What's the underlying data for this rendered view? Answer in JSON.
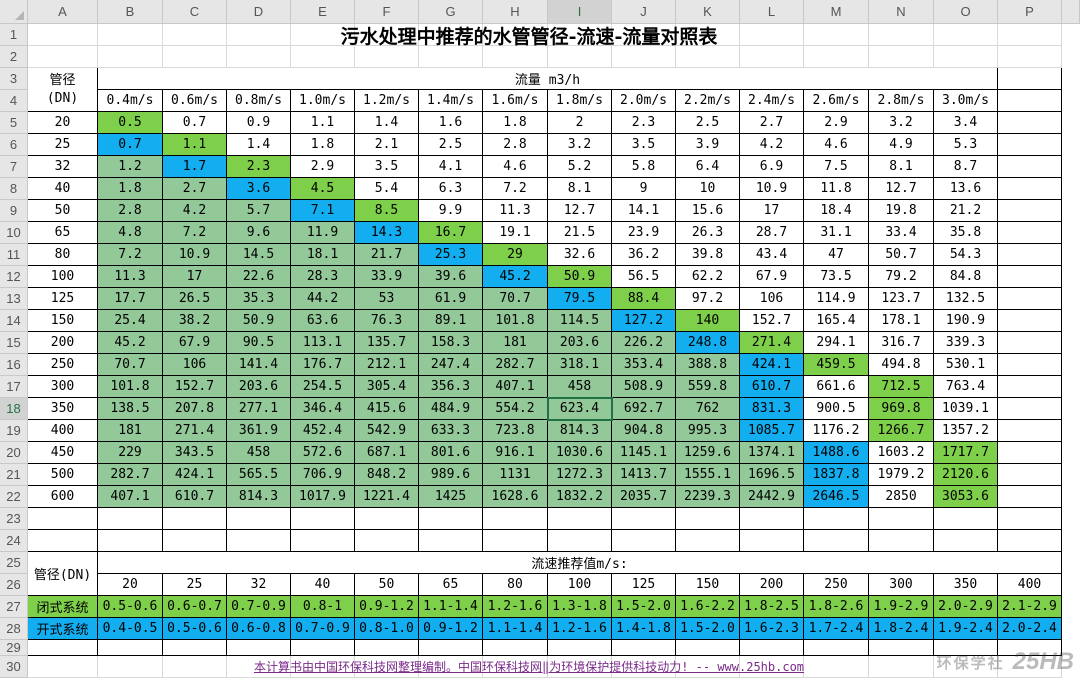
{
  "columns": [
    "A",
    "B",
    "C",
    "D",
    "E",
    "F",
    "G",
    "H",
    "I",
    "J",
    "K",
    "L",
    "M",
    "N",
    "O",
    "P"
  ],
  "rows": [
    "1",
    "2",
    "3",
    "4",
    "5",
    "6",
    "7",
    "8",
    "9",
    "10",
    "11",
    "12",
    "13",
    "14",
    "15",
    "16",
    "17",
    "18",
    "19",
    "20",
    "21",
    "22",
    "23",
    "24",
    "25",
    "26",
    "27",
    "28",
    "29",
    "30"
  ],
  "selected_column": "I",
  "selected_row": "18",
  "title": "污水处理中推荐的水管管径-流速-流量对照表",
  "table1": {
    "dn_header": [
      "管径",
      "(DN)"
    ],
    "flow_header": "流量 m3/h",
    "speeds": [
      "0.4m/s",
      "0.6m/s",
      "0.8m/s",
      "1.0m/s",
      "1.2m/s",
      "1.4m/s",
      "1.6m/s",
      "1.8m/s",
      "2.0m/s",
      "2.2m/s",
      "2.4m/s",
      "2.6m/s",
      "2.8m/s",
      "3.0m/s"
    ],
    "dn": [
      "20",
      "25",
      "32",
      "40",
      "50",
      "65",
      "80",
      "100",
      "125",
      "150",
      "200",
      "250",
      "300",
      "350",
      "400",
      "450",
      "500",
      "600"
    ],
    "values": [
      [
        "0.5",
        "0.7",
        "0.9",
        "1.1",
        "1.4",
        "1.6",
        "1.8",
        "2",
        "2.3",
        "2.5",
        "2.7",
        "2.9",
        "3.2",
        "3.4"
      ],
      [
        "0.7",
        "1.1",
        "1.4",
        "1.8",
        "2.1",
        "2.5",
        "2.8",
        "3.2",
        "3.5",
        "3.9",
        "4.2",
        "4.6",
        "4.9",
        "5.3"
      ],
      [
        "1.2",
        "1.7",
        "2.3",
        "2.9",
        "3.5",
        "4.1",
        "4.6",
        "5.2",
        "5.8",
        "6.4",
        "6.9",
        "7.5",
        "8.1",
        "8.7"
      ],
      [
        "1.8",
        "2.7",
        "3.6",
        "4.5",
        "5.4",
        "6.3",
        "7.2",
        "8.1",
        "9",
        "10",
        "10.9",
        "11.8",
        "12.7",
        "13.6"
      ],
      [
        "2.8",
        "4.2",
        "5.7",
        "7.1",
        "8.5",
        "9.9",
        "11.3",
        "12.7",
        "14.1",
        "15.6",
        "17",
        "18.4",
        "19.8",
        "21.2"
      ],
      [
        "4.8",
        "7.2",
        "9.6",
        "11.9",
        "14.3",
        "16.7",
        "19.1",
        "21.5",
        "23.9",
        "26.3",
        "28.7",
        "31.1",
        "33.4",
        "35.8"
      ],
      [
        "7.2",
        "10.9",
        "14.5",
        "18.1",
        "21.7",
        "25.3",
        "29",
        "32.6",
        "36.2",
        "39.8",
        "43.4",
        "47",
        "50.7",
        "54.3"
      ],
      [
        "11.3",
        "17",
        "22.6",
        "28.3",
        "33.9",
        "39.6",
        "45.2",
        "50.9",
        "56.5",
        "62.2",
        "67.9",
        "73.5",
        "79.2",
        "84.8"
      ],
      [
        "17.7",
        "26.5",
        "35.3",
        "44.2",
        "53",
        "61.9",
        "70.7",
        "79.5",
        "88.4",
        "97.2",
        "106",
        "114.9",
        "123.7",
        "132.5"
      ],
      [
        "25.4",
        "38.2",
        "50.9",
        "63.6",
        "76.3",
        "89.1",
        "101.8",
        "114.5",
        "127.2",
        "140",
        "152.7",
        "165.4",
        "178.1",
        "190.9"
      ],
      [
        "45.2",
        "67.9",
        "90.5",
        "113.1",
        "135.7",
        "158.3",
        "181",
        "203.6",
        "226.2",
        "248.8",
        "271.4",
        "294.1",
        "316.7",
        "339.3"
      ],
      [
        "70.7",
        "106",
        "141.4",
        "176.7",
        "212.1",
        "247.4",
        "282.7",
        "318.1",
        "353.4",
        "388.8",
        "424.1",
        "459.5",
        "494.8",
        "530.1"
      ],
      [
        "101.8",
        "152.7",
        "203.6",
        "254.5",
        "305.4",
        "356.3",
        "407.1",
        "458",
        "508.9",
        "559.8",
        "610.7",
        "661.6",
        "712.5",
        "763.4"
      ],
      [
        "138.5",
        "207.8",
        "277.1",
        "346.4",
        "415.6",
        "484.9",
        "554.2",
        "623.4",
        "692.7",
        "762",
        "831.3",
        "900.5",
        "969.8",
        "1039.1"
      ],
      [
        "181",
        "271.4",
        "361.9",
        "452.4",
        "542.9",
        "633.3",
        "723.8",
        "814.3",
        "904.8",
        "995.3",
        "1085.7",
        "1176.2",
        "1266.7",
        "1357.2"
      ],
      [
        "229",
        "343.5",
        "458",
        "572.6",
        "687.1",
        "801.6",
        "916.1",
        "1030.6",
        "1145.1",
        "1259.6",
        "1374.1",
        "1488.6",
        "1603.2",
        "1717.7"
      ],
      [
        "282.7",
        "424.1",
        "565.5",
        "706.9",
        "848.2",
        "989.6",
        "1131",
        "1272.3",
        "1413.7",
        "1555.1",
        "1696.5",
        "1837.8",
        "1979.2",
        "2120.6"
      ],
      [
        "407.1",
        "610.7",
        "814.3",
        "1017.9",
        "1221.4",
        "1425",
        "1628.6",
        "1832.2",
        "2035.7",
        "2239.3",
        "2442.9",
        "2646.5",
        "2850",
        "3053.6"
      ]
    ],
    "fill": [
      [
        "g2",
        "",
        "",
        "",
        "",
        "",
        "",
        "",
        "",
        "",
        "",
        "",
        "",
        ""
      ],
      [
        "bl",
        "g2",
        "",
        "",
        "",
        "",
        "",
        "",
        "",
        "",
        "",
        "",
        "",
        ""
      ],
      [
        "g1",
        "bl",
        "g2",
        "",
        "",
        "",
        "",
        "",
        "",
        "",
        "",
        "",
        "",
        ""
      ],
      [
        "g1",
        "g1",
        "bl",
        "g2",
        "",
        "",
        "",
        "",
        "",
        "",
        "",
        "",
        "",
        ""
      ],
      [
        "g1",
        "g1",
        "g1",
        "bl",
        "g2",
        "",
        "",
        "",
        "",
        "",
        "",
        "",
        "",
        ""
      ],
      [
        "g1",
        "g1",
        "g1",
        "g1",
        "bl",
        "g2",
        "",
        "",
        "",
        "",
        "",
        "",
        "",
        ""
      ],
      [
        "g1",
        "g1",
        "g1",
        "g1",
        "g1",
        "bl",
        "g2",
        "",
        "",
        "",
        "",
        "",
        "",
        ""
      ],
      [
        "g1",
        "g1",
        "g1",
        "g1",
        "g1",
        "g1",
        "bl",
        "g2",
        "",
        "",
        "",
        "",
        "",
        ""
      ],
      [
        "g1",
        "g1",
        "g1",
        "g1",
        "g1",
        "g1",
        "g1",
        "bl",
        "g2",
        "",
        "",
        "",
        "",
        ""
      ],
      [
        "g1",
        "g1",
        "g1",
        "g1",
        "g1",
        "g1",
        "g1",
        "g1",
        "bl",
        "g2",
        "",
        "",
        "",
        ""
      ],
      [
        "g1",
        "g1",
        "g1",
        "g1",
        "g1",
        "g1",
        "g1",
        "g1",
        "g1",
        "bl",
        "g2",
        "",
        "",
        ""
      ],
      [
        "g1",
        "g1",
        "g1",
        "g1",
        "g1",
        "g1",
        "g1",
        "g1",
        "g1",
        "g1",
        "bl",
        "g2",
        "",
        ""
      ],
      [
        "g1",
        "g1",
        "g1",
        "g1",
        "g1",
        "g1",
        "g1",
        "g1",
        "g1",
        "g1",
        "bl",
        "",
        "g2",
        ""
      ],
      [
        "g1",
        "g1",
        "g1",
        "g1",
        "g1",
        "g1",
        "g1",
        "g1",
        "g1",
        "g1",
        "bl",
        "",
        "g2",
        ""
      ],
      [
        "g1",
        "g1",
        "g1",
        "g1",
        "g1",
        "g1",
        "g1",
        "g1",
        "g1",
        "g1",
        "bl",
        "",
        "g2",
        ""
      ],
      [
        "g1",
        "g1",
        "g1",
        "g1",
        "g1",
        "g1",
        "g1",
        "g1",
        "g1",
        "g1",
        "g1",
        "bl",
        "",
        "g2"
      ],
      [
        "g1",
        "g1",
        "g1",
        "g1",
        "g1",
        "g1",
        "g1",
        "g1",
        "g1",
        "g1",
        "g1",
        "bl",
        "",
        "g2"
      ],
      [
        "g1",
        "g1",
        "g1",
        "g1",
        "g1",
        "g1",
        "g1",
        "g1",
        "g1",
        "g1",
        "g1",
        "bl",
        "",
        "g2"
      ]
    ]
  },
  "table2": {
    "dn_label": "管径(DN)",
    "header": "流速推荐值m/s:",
    "dn": [
      "20",
      "25",
      "32",
      "40",
      "50",
      "65",
      "80",
      "100",
      "125",
      "150",
      "200",
      "250",
      "300",
      "350",
      "400"
    ],
    "closed_label": "闭式系统",
    "closed": [
      "0.5-0.6",
      "0.6-0.7",
      "0.7-0.9",
      "0.8-1",
      "0.9-1.2",
      "1.1-1.4",
      "1.2-1.6",
      "1.3-1.8",
      "1.5-2.0",
      "1.6-2.2",
      "1.8-2.5",
      "1.8-2.6",
      "1.9-2.9",
      "2.0-2.9",
      "2.1-2.9"
    ],
    "open_label": "开式系统",
    "open": [
      "0.4-0.5",
      "0.5-0.6",
      "0.6-0.8",
      "0.7-0.9",
      "0.8-1.0",
      "0.9-1.2",
      "1.1-1.4",
      "1.2-1.6",
      "1.4-1.8",
      "1.5-2.0",
      "1.6-2.3",
      "1.7-2.4",
      "1.8-2.4",
      "1.9-2.4",
      "2.0-2.4"
    ]
  },
  "footer": "本计算书由中国环保科技网整理编制。中国环保科技网‖为环境保护提供科技动力! -- www.25hb.com",
  "watermark": [
    "环保学社",
    "25HB"
  ],
  "colors": {
    "light_green": "#93c899",
    "bright_green": "#7ed04a",
    "blue": "#12aef0",
    "link": "#7b2a8a",
    "excel_green": "#217346"
  }
}
